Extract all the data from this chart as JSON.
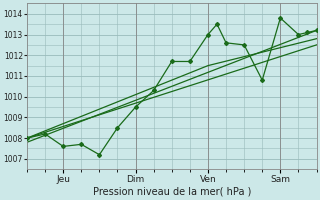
{
  "xlabel": "Pression niveau de la mer( hPa )",
  "bg_color": "#cce8e8",
  "plot_bg_color": "#cce8e8",
  "grid_color": "#99bbbb",
  "line_color": "#1a6b1a",
  "ylim": [
    1006.5,
    1014.5
  ],
  "yticks": [
    1007,
    1008,
    1009,
    1010,
    1011,
    1012,
    1013,
    1014
  ],
  "xlim": [
    0,
    96
  ],
  "x_tick_positions": [
    12,
    36,
    60,
    84
  ],
  "x_tick_labels": [
    "Jeu",
    "Dim",
    "Ven",
    "Sam"
  ],
  "series1_x": [
    0,
    6,
    12,
    18,
    24,
    30,
    36,
    42,
    48,
    54,
    60,
    63,
    66,
    72,
    78,
    84,
    90,
    93,
    96
  ],
  "series1_y": [
    1008.0,
    1008.2,
    1007.6,
    1007.7,
    1007.2,
    1008.5,
    1009.5,
    1010.3,
    1011.7,
    1011.7,
    1013.0,
    1013.5,
    1012.6,
    1012.5,
    1010.8,
    1013.8,
    1013.0,
    1013.1,
    1013.2
  ],
  "series2_x": [
    0,
    96
  ],
  "series2_y": [
    1008.0,
    1012.5
  ],
  "series3_x": [
    0,
    96
  ],
  "series3_y": [
    1007.8,
    1013.2
  ],
  "series4_x": [
    0,
    60,
    96
  ],
  "series4_y": [
    1008.0,
    1011.5,
    1012.8
  ],
  "ytick_fontsize": 5.5,
  "xtick_fontsize": 6.5,
  "xlabel_fontsize": 7.0
}
